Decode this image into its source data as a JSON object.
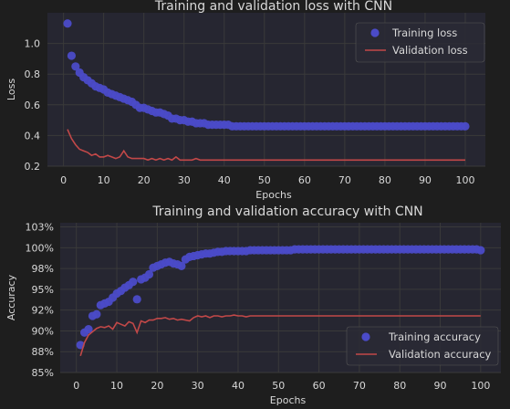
{
  "colors": {
    "figure_bg": "#1e1e1e",
    "axes_bg": "#262631",
    "grid": "#3a3a3a",
    "text": "#d8d8d8",
    "training": "#4b4bc8",
    "validation": "#c24848"
  },
  "chart_data": [
    {
      "type": "scatter",
      "title": "Training and validation loss with CNN",
      "xlabel": "Epochs",
      "ylabel": "Loss",
      "xlim": [
        -4,
        105
      ],
      "ylim": [
        0.2,
        1.2
      ],
      "xticks": [
        0,
        10,
        20,
        30,
        40,
        50,
        60,
        70,
        80,
        90,
        100
      ],
      "yticks": [
        0.2,
        0.4,
        0.6,
        0.8,
        1.0
      ],
      "ytick_labels": [
        "0.2",
        "0.4",
        "0.6",
        "0.8",
        "1.0"
      ],
      "grid": true,
      "legend_position": "top-right",
      "series": [
        {
          "name": "Training loss",
          "style": "points",
          "color": "#4b4bc8",
          "x": [
            1,
            2,
            3,
            4,
            5,
            6,
            7,
            8,
            9,
            10,
            11,
            12,
            13,
            14,
            15,
            16,
            17,
            18,
            19,
            20,
            21,
            22,
            23,
            24,
            25,
            26,
            27,
            28,
            29,
            30,
            31,
            32,
            33,
            34,
            35,
            36,
            37,
            38,
            39,
            40,
            41,
            42,
            43,
            44,
            45,
            46,
            47,
            48,
            49,
            50,
            51,
            52,
            53,
            54,
            55,
            56,
            57,
            58,
            59,
            60,
            61,
            62,
            63,
            64,
            65,
            66,
            67,
            68,
            69,
            70,
            71,
            72,
            73,
            74,
            75,
            76,
            77,
            78,
            79,
            80,
            81,
            82,
            83,
            84,
            85,
            86,
            87,
            88,
            89,
            90,
            91,
            92,
            93,
            94,
            95,
            96,
            97,
            98,
            99,
            100
          ],
          "values": [
            1.13,
            0.92,
            0.85,
            0.81,
            0.78,
            0.76,
            0.74,
            0.72,
            0.71,
            0.7,
            0.68,
            0.67,
            0.66,
            0.65,
            0.64,
            0.63,
            0.62,
            0.6,
            0.58,
            0.58,
            0.57,
            0.56,
            0.55,
            0.55,
            0.54,
            0.53,
            0.51,
            0.51,
            0.5,
            0.5,
            0.49,
            0.49,
            0.48,
            0.48,
            0.48,
            0.47,
            0.47,
            0.47,
            0.47,
            0.47,
            0.47,
            0.46,
            0.46,
            0.46,
            0.46,
            0.46,
            0.46,
            0.46,
            0.46,
            0.46,
            0.46,
            0.46,
            0.46,
            0.46,
            0.46,
            0.46,
            0.46,
            0.46,
            0.46,
            0.46,
            0.46,
            0.46,
            0.46,
            0.46,
            0.46,
            0.46,
            0.46,
            0.46,
            0.46,
            0.46,
            0.46,
            0.46,
            0.46,
            0.46,
            0.46,
            0.46,
            0.46,
            0.46,
            0.46,
            0.46,
            0.46,
            0.46,
            0.46,
            0.46,
            0.46,
            0.46,
            0.46,
            0.46,
            0.46,
            0.46,
            0.46,
            0.46,
            0.46,
            0.46,
            0.46,
            0.46,
            0.46,
            0.46,
            0.46,
            0.46
          ]
        },
        {
          "name": "Validation loss",
          "style": "line",
          "color": "#c24848",
          "x": [
            1,
            2,
            3,
            4,
            5,
            6,
            7,
            8,
            9,
            10,
            11,
            12,
            13,
            14,
            15,
            16,
            17,
            18,
            19,
            20,
            21,
            22,
            23,
            24,
            25,
            26,
            27,
            28,
            29,
            30,
            31,
            32,
            33,
            34,
            35,
            36,
            37,
            38,
            39,
            40,
            41,
            42,
            43,
            44,
            45,
            46,
            47,
            48,
            49,
            50,
            51,
            52,
            53,
            54,
            55,
            56,
            57,
            58,
            59,
            60,
            61,
            62,
            63,
            64,
            65,
            66,
            67,
            68,
            69,
            70,
            71,
            72,
            73,
            74,
            75,
            76,
            77,
            78,
            79,
            80,
            81,
            82,
            83,
            84,
            85,
            86,
            87,
            88,
            89,
            90,
            91,
            92,
            93,
            94,
            95,
            96,
            97,
            98,
            99,
            100
          ],
          "values": [
            0.44,
            0.38,
            0.34,
            0.31,
            0.3,
            0.29,
            0.27,
            0.28,
            0.26,
            0.26,
            0.27,
            0.26,
            0.25,
            0.26,
            0.3,
            0.26,
            0.25,
            0.25,
            0.25,
            0.25,
            0.24,
            0.25,
            0.24,
            0.25,
            0.24,
            0.25,
            0.24,
            0.26,
            0.24,
            0.24,
            0.24,
            0.24,
            0.25,
            0.24,
            0.24,
            0.24,
            0.24,
            0.24,
            0.24,
            0.24,
            0.24,
            0.24,
            0.24,
            0.24,
            0.24,
            0.24,
            0.24,
            0.24,
            0.24,
            0.24,
            0.24,
            0.24,
            0.24,
            0.24,
            0.24,
            0.24,
            0.24,
            0.24,
            0.24,
            0.24,
            0.24,
            0.24,
            0.24,
            0.24,
            0.24,
            0.24,
            0.24,
            0.24,
            0.24,
            0.24,
            0.24,
            0.24,
            0.24,
            0.24,
            0.24,
            0.24,
            0.24,
            0.24,
            0.24,
            0.24,
            0.24,
            0.24,
            0.24,
            0.24,
            0.24,
            0.24,
            0.24,
            0.24,
            0.24,
            0.24,
            0.24,
            0.24,
            0.24,
            0.24,
            0.24,
            0.24,
            0.24,
            0.24,
            0.24,
            0.24
          ]
        }
      ]
    },
    {
      "type": "scatter",
      "title": "Training and validation accuracy with CNN",
      "xlabel": "Epochs",
      "ylabel": "Accuracy",
      "xlim": [
        -4,
        105
      ],
      "ylim": [
        85,
        103
      ],
      "xticks": [
        0,
        10,
        20,
        30,
        40,
        50,
        60,
        70,
        80,
        90,
        100
      ],
      "yticks": [
        85,
        87.5,
        90,
        92.5,
        95,
        97.5,
        100,
        102.5
      ],
      "ytick_labels": [
        "85%",
        "88%",
        "90%",
        "92%",
        "95%",
        "98%",
        "100%",
        "103%"
      ],
      "grid": true,
      "legend_position": "bottom-right",
      "series": [
        {
          "name": "Training accuracy",
          "style": "points",
          "color": "#4b4bc8",
          "x": [
            1,
            2,
            3,
            4,
            5,
            6,
            7,
            8,
            9,
            10,
            11,
            12,
            13,
            14,
            15,
            16,
            17,
            18,
            19,
            20,
            21,
            22,
            23,
            24,
            25,
            26,
            27,
            28,
            29,
            30,
            31,
            32,
            33,
            34,
            35,
            36,
            37,
            38,
            39,
            40,
            41,
            42,
            43,
            44,
            45,
            46,
            47,
            48,
            49,
            50,
            51,
            52,
            53,
            54,
            55,
            56,
            57,
            58,
            59,
            60,
            61,
            62,
            63,
            64,
            65,
            66,
            67,
            68,
            69,
            70,
            71,
            72,
            73,
            74,
            75,
            76,
            77,
            78,
            79,
            80,
            81,
            82,
            83,
            84,
            85,
            86,
            87,
            88,
            89,
            90,
            91,
            92,
            93,
            94,
            95,
            96,
            97,
            98,
            99,
            100
          ],
          "values": [
            88.3,
            89.8,
            90.2,
            91.8,
            92.0,
            93.1,
            93.3,
            93.5,
            94.0,
            94.5,
            94.8,
            95.2,
            95.5,
            95.9,
            93.8,
            96.2,
            96.4,
            96.8,
            97.6,
            97.8,
            98.0,
            98.2,
            98.3,
            98.1,
            98.0,
            97.8,
            98.6,
            98.9,
            99.0,
            99.1,
            99.2,
            99.3,
            99.3,
            99.4,
            99.5,
            99.5,
            99.6,
            99.6,
            99.6,
            99.6,
            99.6,
            99.6,
            99.7,
            99.7,
            99.7,
            99.7,
            99.7,
            99.7,
            99.7,
            99.7,
            99.7,
            99.7,
            99.7,
            99.8,
            99.8,
            99.8,
            99.8,
            99.8,
            99.8,
            99.8,
            99.8,
            99.8,
            99.8,
            99.8,
            99.8,
            99.8,
            99.8,
            99.8,
            99.8,
            99.8,
            99.8,
            99.8,
            99.8,
            99.8,
            99.8,
            99.8,
            99.8,
            99.8,
            99.8,
            99.8,
            99.8,
            99.8,
            99.8,
            99.8,
            99.8,
            99.8,
            99.8,
            99.8,
            99.8,
            99.8,
            99.8,
            99.8,
            99.8,
            99.8,
            99.8,
            99.8,
            99.8,
            99.8,
            99.8,
            99.7
          ]
        },
        {
          "name": "Validation accuracy",
          "style": "line",
          "color": "#c24848",
          "x": [
            1,
            2,
            3,
            4,
            5,
            6,
            7,
            8,
            9,
            10,
            11,
            12,
            13,
            14,
            15,
            16,
            17,
            18,
            19,
            20,
            21,
            22,
            23,
            24,
            25,
            26,
            27,
            28,
            29,
            30,
            31,
            32,
            33,
            34,
            35,
            36,
            37,
            38,
            39,
            40,
            41,
            42,
            43,
            44,
            45,
            46,
            47,
            48,
            49,
            50,
            51,
            52,
            53,
            54,
            55,
            56,
            57,
            58,
            59,
            60,
            61,
            62,
            63,
            64,
            65,
            66,
            67,
            68,
            69,
            70,
            71,
            72,
            73,
            74,
            75,
            76,
            77,
            78,
            79,
            80,
            81,
            82,
            83,
            84,
            85,
            86,
            87,
            88,
            89,
            90,
            91,
            92,
            93,
            94,
            95,
            96,
            97,
            98,
            99,
            100
          ],
          "values": [
            87.0,
            88.6,
            89.5,
            89.9,
            90.3,
            90.5,
            90.4,
            90.6,
            90.2,
            91.0,
            90.8,
            90.6,
            91.1,
            90.9,
            89.8,
            91.2,
            91.0,
            91.3,
            91.3,
            91.5,
            91.5,
            91.6,
            91.4,
            91.5,
            91.3,
            91.4,
            91.3,
            91.2,
            91.6,
            91.8,
            91.7,
            91.8,
            91.6,
            91.8,
            91.8,
            91.7,
            91.8,
            91.8,
            91.9,
            91.8,
            91.8,
            91.7,
            91.8,
            91.8,
            91.8,
            91.8,
            91.8,
            91.8,
            91.8,
            91.8,
            91.8,
            91.8,
            91.8,
            91.8,
            91.8,
            91.8,
            91.8,
            91.8,
            91.8,
            91.8,
            91.8,
            91.8,
            91.8,
            91.8,
            91.8,
            91.8,
            91.8,
            91.8,
            91.8,
            91.8,
            91.8,
            91.8,
            91.8,
            91.8,
            91.8,
            91.8,
            91.8,
            91.8,
            91.8,
            91.8,
            91.8,
            91.8,
            91.8,
            91.8,
            91.8,
            91.8,
            91.8,
            91.8,
            91.8,
            91.8,
            91.8,
            91.8,
            91.8,
            91.8,
            91.8,
            91.8,
            91.8,
            91.8,
            91.8,
            91.8
          ]
        }
      ]
    }
  ]
}
